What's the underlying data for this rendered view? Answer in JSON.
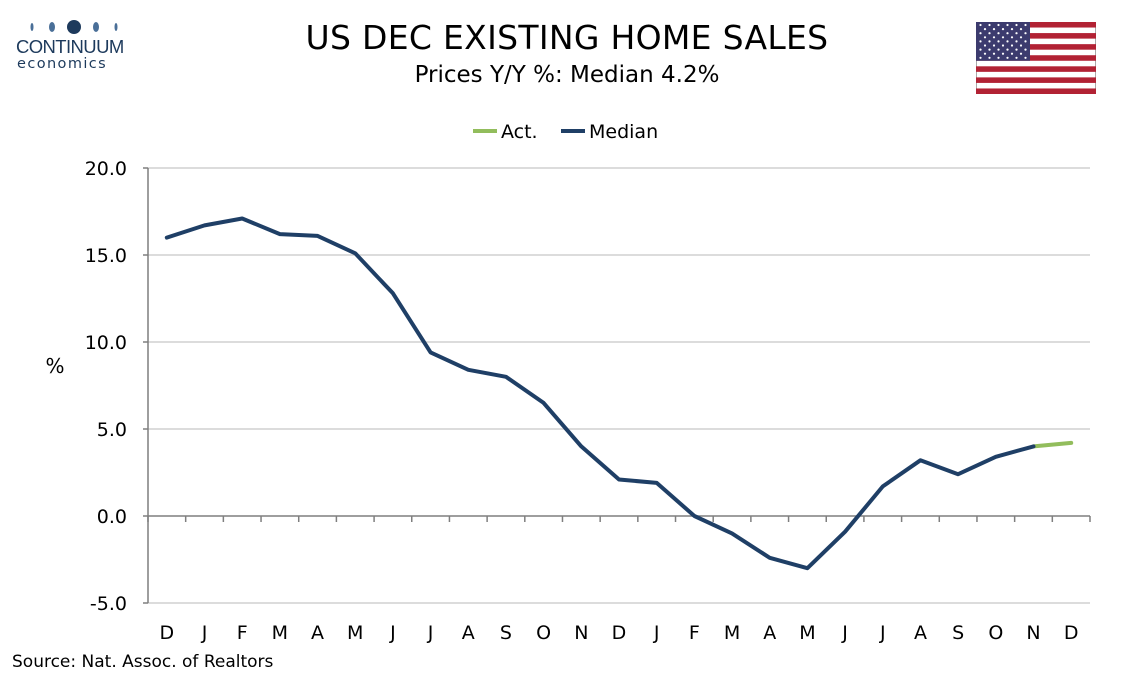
{
  "brand": {
    "name": "CONTINUUM",
    "sub": "economics"
  },
  "flag_icon": "us-flag-icon",
  "source": "Source: Nat. Assoc. of Realtors",
  "colors": {
    "median": "#1f3f66",
    "actual": "#92bd5c",
    "grid": "#d0d0d0",
    "axis": "#7f7f7f",
    "brand": "#1d3a5c"
  },
  "chart_data": {
    "type": "line",
    "title": "US DEC EXISTING HOME SALES",
    "subtitle": "Prices Y/Y %: Median 4.2%",
    "ylabel": "%",
    "ylim": [
      -5,
      20
    ],
    "yticks": [
      "20.0",
      "15.0",
      "10.0",
      "5.0",
      "0.0",
      "-5.0"
    ],
    "ytick_values": [
      20,
      15,
      10,
      5,
      0,
      -5
    ],
    "legend_position": "top-center",
    "grid": true,
    "categories": [
      "D",
      "J",
      "F",
      "M",
      "A",
      "M",
      "J",
      "J",
      "A",
      "S",
      "O",
      "N",
      "D",
      "J",
      "F",
      "M",
      "A",
      "M",
      "J",
      "J",
      "A",
      "S",
      "O",
      "N",
      "D"
    ],
    "series": [
      {
        "name": "Act.",
        "color": "#92bd5c",
        "values": [
          null,
          null,
          null,
          null,
          null,
          null,
          null,
          null,
          null,
          null,
          null,
          null,
          null,
          null,
          null,
          null,
          null,
          null,
          null,
          null,
          null,
          null,
          null,
          4.0,
          4.2
        ]
      },
      {
        "name": "Median",
        "color": "#1f3f66",
        "values": [
          16.0,
          16.7,
          17.1,
          16.2,
          16.1,
          15.1,
          12.8,
          9.4,
          8.4,
          8.0,
          6.5,
          4.0,
          2.1,
          1.9,
          0.0,
          -1.0,
          -2.4,
          -3.0,
          -0.9,
          1.7,
          3.2,
          2.4,
          3.4,
          4.0,
          null
        ]
      }
    ]
  }
}
